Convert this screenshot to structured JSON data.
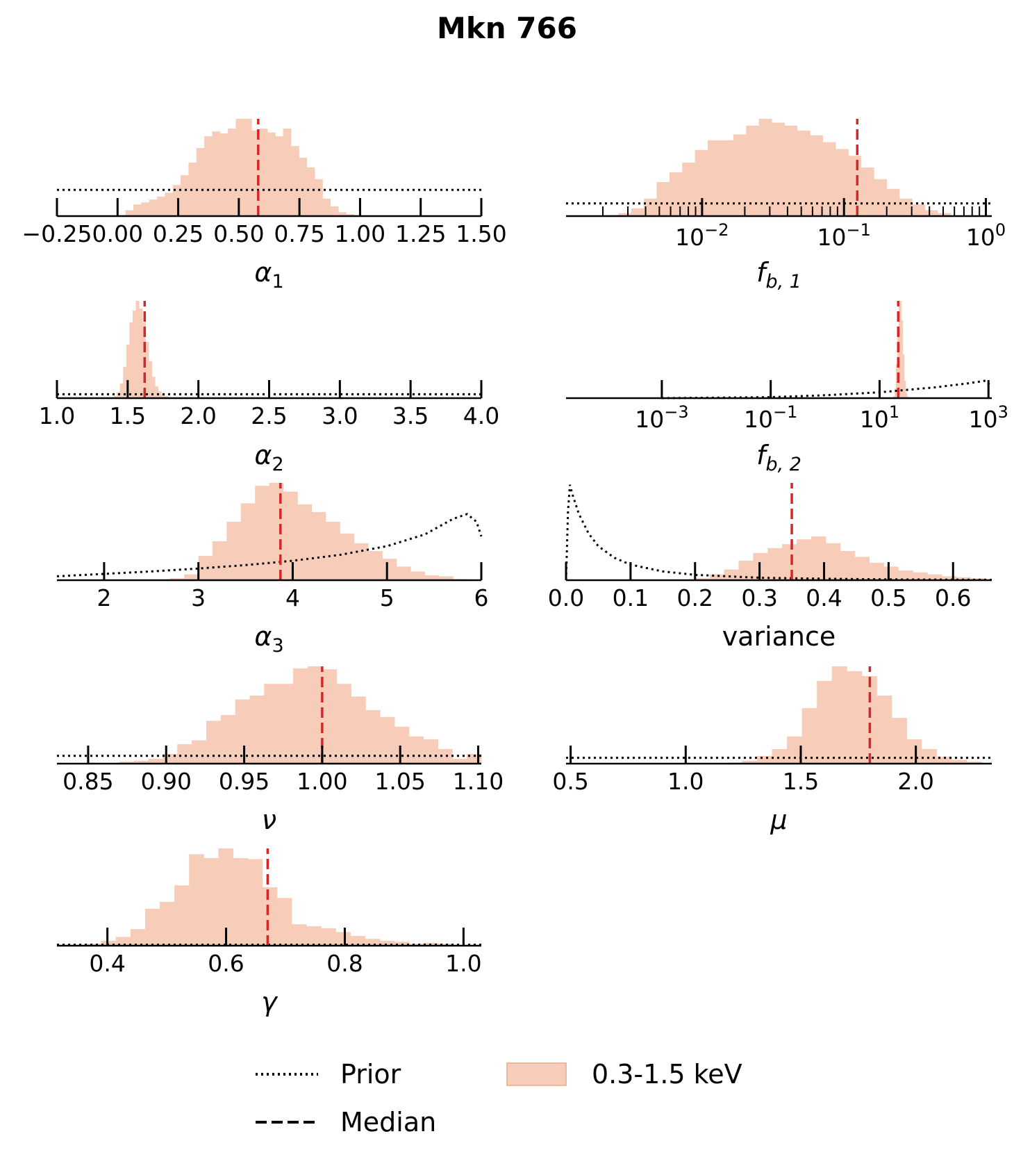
{
  "title": "Mkn 766",
  "colors": {
    "hist": "#f7cdb9",
    "median": "#d62728",
    "prior": "#000000"
  },
  "legend": {
    "prior": "Prior",
    "median": "Median",
    "hist": "0.3-1.5 keV"
  },
  "chart_data": [
    {
      "id": "alpha1",
      "type": "bar",
      "scale": "linear",
      "xlabel": "α",
      "xlabel_sub": "1",
      "xlim": [
        -0.25,
        1.5
      ],
      "ticks": [
        -0.25,
        0.0,
        0.25,
        0.5,
        0.75,
        1.0,
        1.25,
        1.5
      ],
      "tick_labels": [
        "−0.25",
        "0.00",
        "0.25",
        "0.50",
        "0.75",
        "1.00",
        "1.25",
        "1.50"
      ],
      "hist": {
        "start": 0.0,
        "step": 0.0325,
        "values": [
          0.01,
          0.06,
          0.12,
          0.14,
          0.17,
          0.2,
          0.24,
          0.32,
          0.42,
          0.55,
          0.7,
          0.82,
          0.87,
          0.85,
          0.9,
          1.0,
          1.0,
          0.88,
          0.9,
          0.86,
          0.82,
          0.9,
          0.72,
          0.6,
          0.5,
          0.38,
          0.18,
          0.1,
          0.04,
          0.02
        ],
        "max": 1.0
      },
      "median": 0.58,
      "prior": {
        "kind": "flat",
        "level": 0.27
      }
    },
    {
      "id": "fb1",
      "type": "bar",
      "scale": "log",
      "xlabel": "f",
      "xlabel_sub": "b, 1",
      "xlim": [
        0.0011,
        1.1
      ],
      "major_ticks": [
        0.01,
        0.1,
        1
      ],
      "tick_labels": [
        {
          "base": "10",
          "exp": "−2"
        },
        {
          "base": "10",
          "exp": "−1"
        },
        {
          "base": "10",
          "exp": "0"
        }
      ],
      "minor_ticks": [
        0.002,
        0.003,
        0.004,
        0.005,
        0.006,
        0.007,
        0.008,
        0.009,
        0.02,
        0.03,
        0.04,
        0.05,
        0.06,
        0.07,
        0.08,
        0.09,
        0.2,
        0.3,
        0.4,
        0.5,
        0.6,
        0.7,
        0.8,
        0.9
      ],
      "hist": {
        "logstart": -2.68,
        "logstep": 0.09,
        "values": [
          0.01,
          0.03,
          0.08,
          0.18,
          0.35,
          0.45,
          0.55,
          0.68,
          0.78,
          0.78,
          0.84,
          0.93,
          1.0,
          0.96,
          0.93,
          0.88,
          0.83,
          0.76,
          0.69,
          0.62,
          0.5,
          0.38,
          0.28,
          0.18,
          0.12,
          0.06,
          0.03
        ],
        "max": 1.0
      },
      "median": 0.124,
      "prior": {
        "kind": "flat",
        "level": 0.13
      }
    },
    {
      "id": "alpha2",
      "type": "bar",
      "scale": "linear",
      "xlabel": "α",
      "xlabel_sub": "2",
      "xlim": [
        1.0,
        4.0
      ],
      "ticks": [
        1.0,
        1.5,
        2.0,
        2.5,
        3.0,
        3.5,
        4.0
      ],
      "tick_labels": [
        "1.0",
        "1.5",
        "2.0",
        "2.5",
        "3.0",
        "3.5",
        "4.0"
      ],
      "hist": {
        "start": 1.4,
        "step": 0.0225,
        "values": [
          0.02,
          0.06,
          0.15,
          0.32,
          0.55,
          0.78,
          0.9,
          1.0,
          0.92,
          0.78,
          0.58,
          0.38,
          0.22,
          0.12,
          0.07,
          0.04,
          0.02,
          0.01
        ],
        "max": 1.0
      },
      "median": 1.62,
      "prior": {
        "kind": "flat",
        "level": 0.04
      }
    },
    {
      "id": "fb2",
      "type": "bar",
      "scale": "log",
      "xlabel": "f",
      "xlabel_sub": "b, 2",
      "xlim": [
        1.74e-05,
        1150
      ],
      "major_ticks": [
        0.001,
        0.1,
        10,
        1000
      ],
      "tick_labels": [
        {
          "base": "10",
          "exp": "−3"
        },
        {
          "base": "10",
          "exp": "−1"
        },
        {
          "base": "10",
          "exp": "1"
        },
        {
          "base": "10",
          "exp": "3"
        }
      ],
      "minor_ticks": [],
      "hist": {
        "logstart": 1.25,
        "logstep": 0.025,
        "values": [
          0.02,
          0.1,
          0.35,
          0.7,
          0.95,
          1.0,
          0.8,
          0.45,
          0.18,
          0.06,
          0.02
        ],
        "max": 1.0
      },
      "median": 22,
      "prior": {
        "kind": "rising",
        "points": [
          [
            -3,
            0.0
          ],
          [
            -1,
            0.01
          ],
          [
            0,
            0.03
          ],
          [
            1,
            0.06
          ],
          [
            2,
            0.11
          ],
          [
            2.6,
            0.15
          ],
          [
            2.95,
            0.18
          ],
          [
            3.05,
            0.12
          ]
        ]
      }
    },
    {
      "id": "alpha3",
      "type": "bar",
      "scale": "linear",
      "xlabel": "α",
      "xlabel_sub": "3",
      "xlim": [
        1.5,
        6.0
      ],
      "ticks": [
        2,
        3,
        4,
        5,
        6
      ],
      "tick_labels": [
        "2",
        "3",
        "4",
        "5",
        "6"
      ],
      "hist": {
        "start": 2.7,
        "step": 0.15,
        "values": [
          0.02,
          0.06,
          0.25,
          0.4,
          0.6,
          0.79,
          0.97,
          1.0,
          0.91,
          0.78,
          0.7,
          0.6,
          0.48,
          0.38,
          0.3,
          0.22,
          0.14,
          0.09,
          0.05,
          0.04,
          0.01
        ],
        "max": 1.0
      },
      "median": 3.87,
      "prior": {
        "kind": "curve",
        "points": [
          [
            1.5,
            0.04
          ],
          [
            2.0,
            0.065
          ],
          [
            2.5,
            0.09
          ],
          [
            3.0,
            0.12
          ],
          [
            3.5,
            0.155
          ],
          [
            4.0,
            0.2
          ],
          [
            4.5,
            0.26
          ],
          [
            5.0,
            0.35
          ],
          [
            5.4,
            0.47
          ],
          [
            5.7,
            0.63
          ],
          [
            5.85,
            0.68
          ],
          [
            5.95,
            0.6
          ],
          [
            6.0,
            0.45
          ]
        ]
      }
    },
    {
      "id": "variance",
      "type": "bar",
      "scale": "linear",
      "xlabel": "variance",
      "xlabel_sub": "",
      "xlim": [
        0.0,
        0.66
      ],
      "ticks": [
        0.0,
        0.1,
        0.2,
        0.3,
        0.4,
        0.5,
        0.6
      ],
      "tick_labels": [
        "0.0",
        "0.1",
        "0.2",
        "0.3",
        "0.4",
        "0.5",
        "0.6"
      ],
      "hist": {
        "start": 0.2,
        "step": 0.0225,
        "values": [
          0.02,
          0.06,
          0.11,
          0.2,
          0.28,
          0.33,
          0.37,
          0.42,
          0.45,
          0.38,
          0.3,
          0.24,
          0.18,
          0.14,
          0.1,
          0.08,
          0.06,
          0.04,
          0.03,
          0.02
        ],
        "max": 1.0
      },
      "median": 0.35,
      "prior": {
        "kind": "curve",
        "points": [
          [
            0.0,
            0.0
          ],
          [
            0.003,
            0.7
          ],
          [
            0.006,
            0.98
          ],
          [
            0.01,
            0.88
          ],
          [
            0.02,
            0.68
          ],
          [
            0.035,
            0.48
          ],
          [
            0.05,
            0.35
          ],
          [
            0.075,
            0.23
          ],
          [
            0.1,
            0.16
          ],
          [
            0.15,
            0.09
          ],
          [
            0.2,
            0.055
          ],
          [
            0.3,
            0.025
          ],
          [
            0.4,
            0.015
          ],
          [
            0.5,
            0.008
          ],
          [
            0.66,
            0.004
          ]
        ]
      }
    },
    {
      "id": "nu",
      "type": "bar",
      "scale": "linear",
      "xlabel": "ν",
      "xlabel_sub": "",
      "xlim": [
        0.83,
        1.102
      ],
      "ticks": [
        0.85,
        0.9,
        0.95,
        1.0,
        1.05,
        1.1
      ],
      "tick_labels": [
        "0.85",
        "0.90",
        "0.95",
        "1.00",
        "1.05",
        "1.10"
      ],
      "hist": {
        "start": 0.87,
        "step": 0.00928,
        "values": [
          0.02,
          0.03,
          0.05,
          0.1,
          0.2,
          0.24,
          0.44,
          0.5,
          0.66,
          0.7,
          0.82,
          0.82,
          0.98,
          1.0,
          0.97,
          0.82,
          0.69,
          0.55,
          0.48,
          0.38,
          0.28,
          0.25,
          0.15,
          0.05,
          0.1
        ],
        "max": 1.0
      },
      "median": 1.0,
      "prior": {
        "kind": "flat",
        "level": 0.08
      }
    },
    {
      "id": "mu",
      "type": "bar",
      "scale": "linear",
      "xlabel": "μ",
      "xlabel_sub": "",
      "xlim": [
        0.48,
        2.33
      ],
      "ticks": [
        0.5,
        1.0,
        1.5,
        2.0
      ],
      "tick_labels": [
        "0.5",
        "1.0",
        "1.5",
        "2.0"
      ],
      "hist": {
        "start": 1.18,
        "step": 0.065,
        "values": [
          0.01,
          0.03,
          0.08,
          0.15,
          0.28,
          0.57,
          0.85,
          1.0,
          0.95,
          0.9,
          0.7,
          0.47,
          0.25,
          0.15,
          0.07,
          0.04,
          0.02
        ],
        "max": 1.0
      },
      "median": 1.8,
      "prior": {
        "kind": "flat",
        "level": 0.06
      }
    },
    {
      "id": "gamma",
      "type": "bar",
      "scale": "linear",
      "xlabel": "γ",
      "xlabel_sub": "",
      "xlim": [
        0.315,
        1.03
      ],
      "ticks": [
        0.4,
        0.6,
        0.8,
        1.0
      ],
      "tick_labels": [
        "0.4",
        "0.6",
        "0.8",
        "1.0"
      ],
      "hist": {
        "start": 0.34,
        "step": 0.0247,
        "values": [
          0.01,
          0.02,
          0.05,
          0.09,
          0.17,
          0.38,
          0.45,
          0.62,
          0.94,
          0.9,
          1.0,
          0.9,
          0.89,
          0.6,
          0.49,
          0.22,
          0.2,
          0.18,
          0.14,
          0.1,
          0.07,
          0.05,
          0.04,
          0.02,
          0.03,
          0.02
        ],
        "max": 1.0
      },
      "median": 0.67,
      "prior": {
        "kind": "flat",
        "level": 0.01
      }
    }
  ]
}
